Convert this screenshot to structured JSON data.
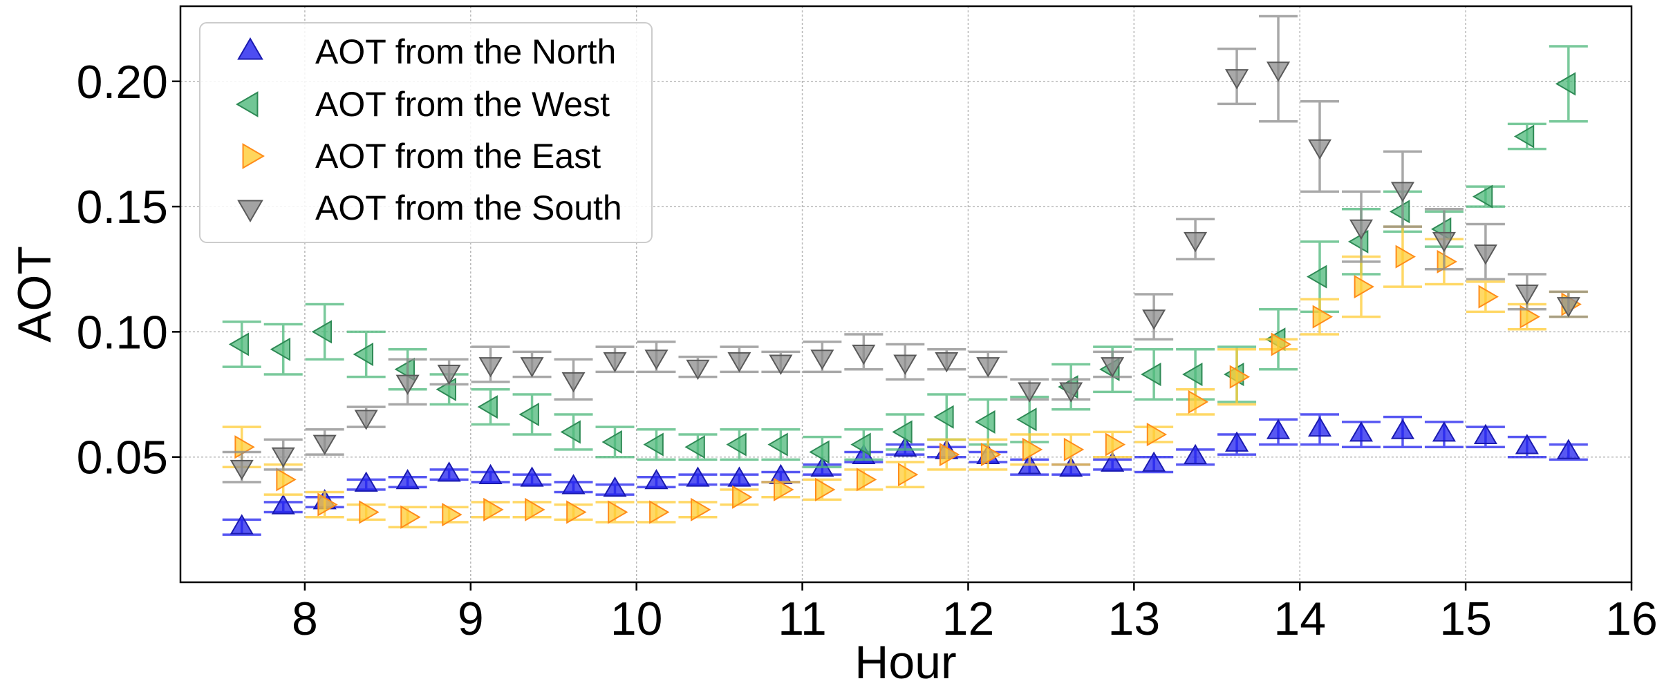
{
  "chart_data": {
    "type": "scatter",
    "title": "",
    "xlabel": "Hour",
    "ylabel": "AOT",
    "xlim": [
      7.25,
      16.0
    ],
    "ylim": [
      0.0,
      0.23
    ],
    "xticks": [
      8,
      9,
      10,
      11,
      12,
      13,
      14,
      15,
      16
    ],
    "yticks": [
      0.05,
      0.1,
      0.15,
      0.2
    ],
    "ytick_labels": [
      "0.05",
      "0.10",
      "0.15",
      "0.20"
    ],
    "grid": true,
    "legend_position": "top-left",
    "series": [
      {
        "name": "AOT from the North",
        "marker": "triangle-up",
        "color": "#2020ee",
        "edge_color": "#1a1ab0",
        "x": [
          7.62,
          7.87,
          8.12,
          8.37,
          8.62,
          8.87,
          9.12,
          9.37,
          9.62,
          9.87,
          10.12,
          10.37,
          10.62,
          10.87,
          11.12,
          11.37,
          11.62,
          11.87,
          12.12,
          12.37,
          12.62,
          12.87,
          13.12,
          13.37,
          13.62,
          13.87,
          14.12,
          14.37,
          14.62,
          14.87,
          15.12,
          15.37,
          15.62
        ],
        "y": [
          0.022,
          0.03,
          0.032,
          0.039,
          0.04,
          0.043,
          0.042,
          0.041,
          0.038,
          0.037,
          0.04,
          0.041,
          0.041,
          0.042,
          0.045,
          0.05,
          0.053,
          0.052,
          0.05,
          0.046,
          0.045,
          0.047,
          0.047,
          0.05,
          0.055,
          0.06,
          0.061,
          0.059,
          0.06,
          0.059,
          0.058,
          0.054,
          0.052
        ],
        "err": [
          0.003,
          0.002,
          0.002,
          0.002,
          0.002,
          0.002,
          0.002,
          0.002,
          0.002,
          0.002,
          0.002,
          0.002,
          0.002,
          0.002,
          0.002,
          0.002,
          0.002,
          0.002,
          0.002,
          0.003,
          0.002,
          0.002,
          0.003,
          0.003,
          0.004,
          0.005,
          0.006,
          0.005,
          0.006,
          0.005,
          0.004,
          0.004,
          0.003
        ]
      },
      {
        "name": "AOT from the West",
        "marker": "triangle-left",
        "color": "#4db87a",
        "edge_color": "#2e8a55",
        "x": [
          7.62,
          7.87,
          8.12,
          8.37,
          8.62,
          8.87,
          9.12,
          9.37,
          9.62,
          9.87,
          10.12,
          10.37,
          10.62,
          10.87,
          11.12,
          11.37,
          11.62,
          11.87,
          12.12,
          12.37,
          12.62,
          12.87,
          13.12,
          13.37,
          13.62,
          13.87,
          14.12,
          14.37,
          14.62,
          14.87,
          15.12,
          15.37,
          15.62
        ],
        "y": [
          0.095,
          0.093,
          0.1,
          0.091,
          0.085,
          0.077,
          0.07,
          0.067,
          0.06,
          0.056,
          0.055,
          0.054,
          0.055,
          0.055,
          0.052,
          0.055,
          0.06,
          0.066,
          0.064,
          0.065,
          0.078,
          0.085,
          0.083,
          0.083,
          0.083,
          0.097,
          0.122,
          0.136,
          0.148,
          0.141,
          0.154,
          0.178,
          0.199
        ],
        "err": [
          0.009,
          0.01,
          0.011,
          0.009,
          0.008,
          0.006,
          0.007,
          0.008,
          0.007,
          0.006,
          0.006,
          0.005,
          0.006,
          0.006,
          0.006,
          0.006,
          0.007,
          0.009,
          0.009,
          0.009,
          0.009,
          0.009,
          0.01,
          0.01,
          0.011,
          0.012,
          0.014,
          0.013,
          0.008,
          0.007,
          0.004,
          0.005,
          0.015
        ]
      },
      {
        "name": "AOT from the East",
        "marker": "triangle-right",
        "color": "#ffcc33",
        "edge_color": "#ff8c1a",
        "x": [
          7.62,
          7.87,
          8.12,
          8.37,
          8.62,
          8.87,
          9.12,
          9.37,
          9.62,
          9.87,
          10.12,
          10.37,
          10.62,
          10.87,
          11.12,
          11.37,
          11.62,
          11.87,
          12.12,
          12.37,
          12.62,
          12.87,
          13.12,
          13.37,
          13.62,
          13.87,
          14.12,
          14.37,
          14.62,
          14.87,
          15.12,
          15.37,
          15.62
        ],
        "y": [
          0.054,
          0.041,
          0.031,
          0.028,
          0.026,
          0.027,
          0.029,
          0.029,
          0.028,
          0.028,
          0.028,
          0.029,
          0.034,
          0.037,
          0.037,
          0.041,
          0.043,
          0.051,
          0.051,
          0.053,
          0.053,
          0.055,
          0.059,
          0.072,
          0.082,
          0.095,
          0.106,
          0.118,
          0.13,
          0.128,
          0.114,
          0.106,
          0.111
        ],
        "err": [
          0.008,
          0.006,
          0.005,
          0.003,
          0.004,
          0.003,
          0.003,
          0.003,
          0.003,
          0.004,
          0.004,
          0.003,
          0.003,
          0.003,
          0.004,
          0.004,
          0.005,
          0.006,
          0.006,
          0.006,
          0.006,
          0.005,
          0.003,
          0.005,
          0.011,
          0.002,
          0.007,
          0.012,
          0.012,
          0.009,
          0.006,
          0.005,
          0.005
        ]
      },
      {
        "name": "AOT from the South",
        "marker": "triangle-down",
        "color": "#8c8c8c",
        "edge_color": "#5a5a5a",
        "x": [
          7.62,
          7.87,
          8.12,
          8.37,
          8.62,
          8.87,
          9.12,
          9.37,
          9.62,
          9.87,
          10.12,
          10.37,
          10.62,
          10.87,
          11.12,
          11.37,
          11.62,
          11.87,
          12.12,
          12.37,
          12.62,
          12.87,
          13.12,
          13.37,
          13.62,
          13.87,
          14.12,
          14.37,
          14.62,
          14.87,
          15.12,
          15.37,
          15.62
        ],
        "y": [
          0.046,
          0.051,
          0.056,
          0.066,
          0.08,
          0.084,
          0.087,
          0.087,
          0.081,
          0.089,
          0.09,
          0.086,
          0.089,
          0.088,
          0.09,
          0.092,
          0.088,
          0.089,
          0.087,
          0.077,
          0.077,
          0.087,
          0.106,
          0.137,
          0.202,
          0.205,
          0.174,
          0.142,
          0.157,
          0.137,
          0.132,
          0.116,
          0.111
        ],
        "err": [
          0.006,
          0.006,
          0.005,
          0.004,
          0.009,
          0.005,
          0.007,
          0.005,
          0.008,
          0.005,
          0.006,
          0.004,
          0.005,
          0.004,
          0.006,
          0.007,
          0.007,
          0.004,
          0.005,
          0.004,
          0.004,
          0.005,
          0.009,
          0.008,
          0.011,
          0.021,
          0.018,
          0.014,
          0.015,
          0.012,
          0.011,
          0.007,
          0.005
        ]
      }
    ]
  }
}
